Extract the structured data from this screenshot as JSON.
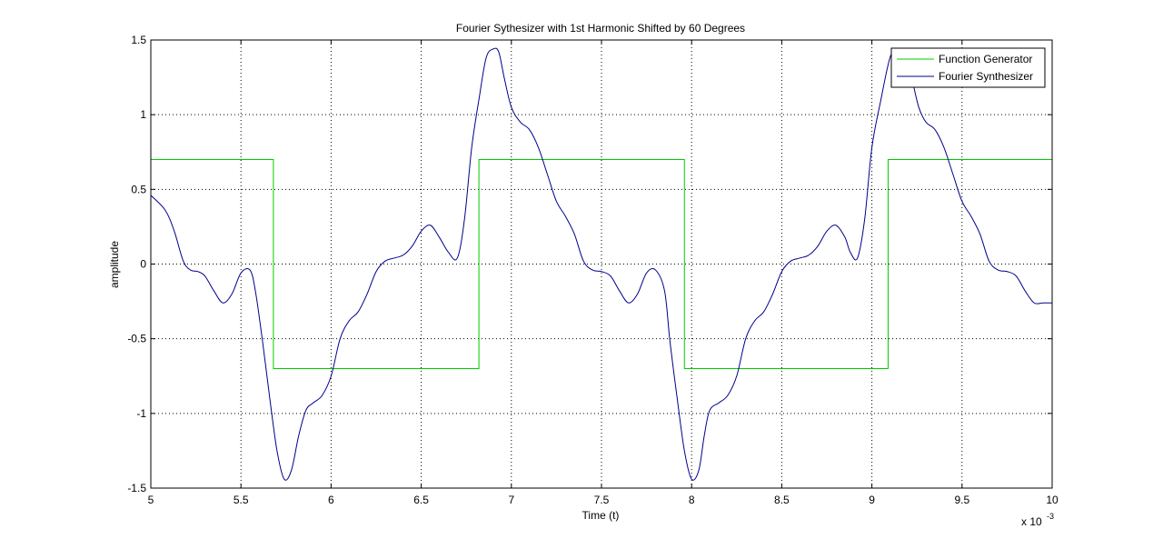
{
  "chart_data": {
    "type": "line",
    "title": "Fourier Sythesizer with 1st Harmonic Shifted by 60 Degrees",
    "xlabel": "Time (t)",
    "ylabel": "amplitude",
    "x_exponent_label": "x 10",
    "x_exponent_power": "-3",
    "xlim": [
      5,
      10
    ],
    "ylim": [
      -1.5,
      1.5
    ],
    "x_scale_factor": 0.001,
    "x_ticks": [
      5,
      5.5,
      6,
      6.5,
      7,
      7.5,
      8,
      8.5,
      9,
      9.5,
      10
    ],
    "x_tick_labels": [
      "5",
      "5.5",
      "6",
      "6.5",
      "7",
      "7.5",
      "8",
      "8.5",
      "9",
      "9.5",
      "10"
    ],
    "y_ticks": [
      1.5,
      1,
      0.5,
      0,
      -0.5,
      -1,
      -1.5
    ],
    "y_tick_labels": [
      "1.5",
      "1",
      "0.5",
      "0",
      "-0.5",
      "-1",
      "-1.5"
    ],
    "grid": true,
    "grid_style": "dotted",
    "legend_position": "top-right",
    "series": [
      {
        "name": "Function Generator",
        "color": "#00cc00",
        "style": "square-wave",
        "x": [
          5.0,
          5.68,
          5.68,
          6.82,
          6.82,
          7.96,
          7.96,
          9.09,
          9.09,
          10.0
        ],
        "y": [
          0.7,
          0.7,
          -0.7,
          -0.7,
          0.7,
          0.7,
          -0.7,
          -0.7,
          0.7,
          0.7
        ]
      },
      {
        "name": "Fourier Synthesizer",
        "color": "#00008b",
        "style": "smooth",
        "x": [
          5.0,
          5.08,
          5.13,
          5.18,
          5.22,
          5.26,
          5.3,
          5.35,
          5.4,
          5.45,
          5.5,
          5.55,
          5.58,
          5.62,
          5.66,
          5.7,
          5.74,
          5.78,
          5.82,
          5.86,
          5.9,
          5.95,
          6.0,
          6.05,
          6.1,
          6.15,
          6.2,
          6.25,
          6.3,
          6.35,
          6.4,
          6.45,
          6.5,
          6.55,
          6.6,
          6.65,
          6.7,
          6.74,
          6.78,
          6.82,
          6.86,
          6.9,
          6.93,
          6.96,
          7.0,
          7.05,
          7.1,
          7.15,
          7.2,
          7.25,
          7.3,
          7.35,
          7.4,
          7.45,
          7.5,
          7.55,
          7.6,
          7.65,
          7.7,
          7.75,
          7.8,
          7.85,
          7.88,
          7.92,
          7.96,
          8.0,
          8.04,
          8.07,
          8.1,
          8.15,
          8.2,
          8.25,
          8.3,
          8.35,
          8.4,
          8.45,
          8.5,
          8.55,
          8.6,
          8.65,
          8.7,
          8.75,
          8.8,
          8.85,
          8.88,
          8.92,
          8.96,
          9.0,
          9.05,
          9.1,
          9.14,
          9.18,
          9.22,
          9.26,
          9.3,
          9.35,
          9.4,
          9.45,
          9.5,
          9.55,
          9.6,
          9.65,
          9.7,
          9.75,
          9.8,
          9.85,
          9.9,
          9.95,
          10.0
        ],
        "y": [
          0.46,
          0.36,
          0.22,
          0.02,
          -0.04,
          -0.05,
          -0.08,
          -0.18,
          -0.26,
          -0.2,
          -0.06,
          -0.04,
          -0.18,
          -0.52,
          -0.9,
          -1.25,
          -1.44,
          -1.38,
          -1.15,
          -0.98,
          -0.93,
          -0.88,
          -0.75,
          -0.5,
          -0.38,
          -0.32,
          -0.2,
          -0.05,
          0.02,
          0.04,
          0.06,
          0.12,
          0.22,
          0.26,
          0.18,
          0.08,
          0.04,
          0.3,
          0.78,
          1.1,
          1.38,
          1.44,
          1.42,
          1.25,
          1.05,
          0.95,
          0.9,
          0.78,
          0.6,
          0.42,
          0.32,
          0.2,
          0.02,
          -0.04,
          -0.05,
          -0.08,
          -0.18,
          -0.26,
          -0.2,
          -0.06,
          -0.04,
          -0.18,
          -0.52,
          -0.9,
          -1.25,
          -1.44,
          -1.38,
          -1.15,
          -0.98,
          -0.93,
          -0.88,
          -0.75,
          -0.5,
          -0.38,
          -0.32,
          -0.2,
          -0.05,
          0.02,
          0.04,
          0.06,
          0.12,
          0.22,
          0.26,
          0.18,
          0.08,
          0.04,
          0.3,
          0.78,
          1.1,
          1.38,
          1.44,
          1.42,
          1.25,
          1.05,
          0.95,
          0.9,
          0.78,
          0.6,
          0.42,
          0.32,
          0.2,
          0.02,
          -0.04,
          -0.05,
          -0.08,
          -0.18,
          -0.26,
          -0.26,
          -0.26
        ]
      }
    ]
  }
}
